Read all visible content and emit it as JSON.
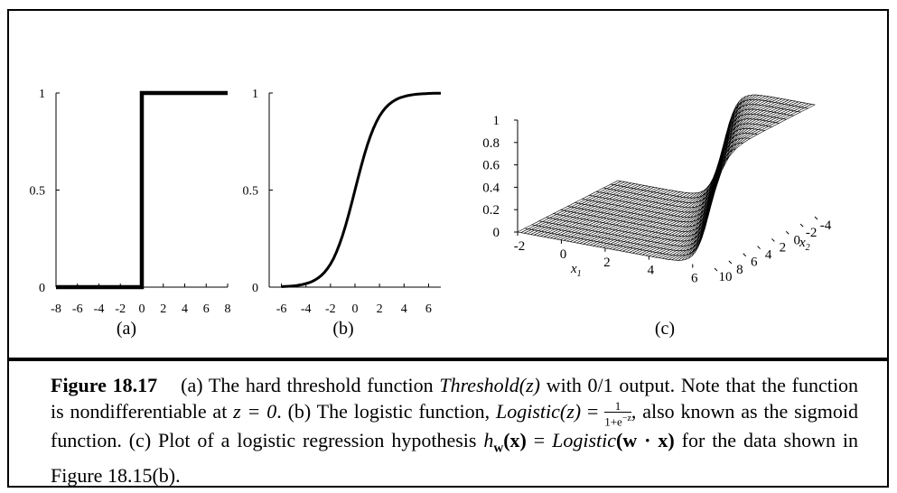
{
  "chart_data": [
    {
      "type": "line",
      "sublabel": "(a)",
      "function": "Threshold(z)",
      "x": [
        -8,
        0,
        0,
        8
      ],
      "y": [
        0,
        0,
        1,
        1
      ],
      "xticks": [
        "-8",
        "-6",
        "-4",
        "-2",
        "0",
        "2",
        "4",
        "6",
        "8"
      ],
      "yticks": [
        "0",
        "0.5",
        "1"
      ],
      "xlim": [
        -8,
        8
      ],
      "ylim": [
        0,
        1
      ]
    },
    {
      "type": "line",
      "sublabel": "(b)",
      "function": "Logistic(z) = 1/(1+e^-z)",
      "x": [
        -6,
        -5,
        -4,
        -3,
        -2,
        -1,
        0,
        1,
        2,
        3,
        4,
        5,
        6,
        7
      ],
      "y": [
        0.0025,
        0.0067,
        0.018,
        0.047,
        0.119,
        0.269,
        0.5,
        0.731,
        0.881,
        0.953,
        0.982,
        0.993,
        0.9975,
        0.9991
      ],
      "xticks": [
        "-6",
        "-4",
        "-2",
        "0",
        "2",
        "4",
        "6"
      ],
      "yticks": [
        "0",
        "0.5",
        "1"
      ],
      "xlim": [
        -7,
        7
      ],
      "ylim": [
        0,
        1
      ]
    },
    {
      "type": "surface",
      "sublabel": "(c)",
      "function": "Logistic(w · x)",
      "xlabel": "x1",
      "ylabel": "x2",
      "x1ticks": [
        "-2",
        "0",
        "2",
        "4",
        "6"
      ],
      "x2ticks": [
        "10",
        "8",
        "6",
        "4",
        "2",
        "0",
        "-2",
        "-4"
      ],
      "zticks": [
        "0",
        "0.2",
        "0.4",
        "0.6",
        "0.8",
        "1"
      ],
      "x1lim": [
        -2,
        7
      ],
      "x2lim": [
        -4,
        10
      ],
      "zlim": [
        0,
        1
      ]
    }
  ],
  "caption": {
    "figure_label": "Figure 18.17",
    "part_a": "(a) The hard threshold function ",
    "threshold_fn": "Threshold",
    "part_a_end": " with 0/1 output. Note that the function is nondifferentiable at ",
    "z_eq_0": "z = 0",
    "part_b": ". (b) The logistic function, ",
    "logistic_fn": "Logistic",
    "part_b_mid": " = ",
    "fraction_num": "1",
    "fraction_den": "1+e",
    "fraction_exp": "−z",
    "part_b_end": ", also known as the sigmoid function. (c) Plot of a logistic regression hypothesis ",
    "hw": "h",
    "hw_sub": "w",
    "hw_arg": "(x)",
    "eq": " = ",
    "logistic_wx": "Logistic",
    "wx": "(w · x)",
    "part_c_end": " for the data shown in Figure 18.15(b)."
  }
}
